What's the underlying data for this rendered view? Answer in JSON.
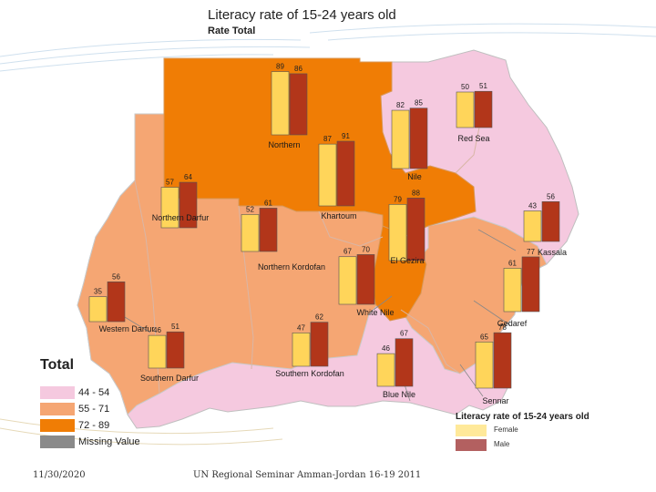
{
  "title": "Literacy rate of 15-24 years old",
  "subtitle": "Rate Total",
  "footer": {
    "date": "11/30/2020",
    "event": "UN Regional Seminar Amman-Jordan 16-19 2011"
  },
  "legend": {
    "title": "Total",
    "items": [
      {
        "label": "44 - 54",
        "color": "#f5c9df"
      },
      {
        "label": "55 - 71",
        "color": "#f5a673"
      },
      {
        "label": "72 - 89",
        "color": "#f07d05"
      },
      {
        "label": "Missing Value",
        "color": "#8a8a8a"
      }
    ]
  },
  "sex_legend": {
    "title": "Literacy rate of 15-24 years old",
    "items": [
      {
        "label": "Female",
        "color": "#ffe99a"
      },
      {
        "label": "Male",
        "color": "#b36060"
      }
    ]
  },
  "chart_data": {
    "type": "bar",
    "ylim": [
      0,
      100
    ],
    "series": [
      {
        "name": "Female",
        "color": "#ffd55a"
      },
      {
        "name": "Male",
        "color": "#b2361a"
      }
    ],
    "states": [
      {
        "name": "Northern",
        "female": 89,
        "male": 86
      },
      {
        "name": "Red Sea",
        "female": 50,
        "male": 51
      },
      {
        "name": "Nile",
        "female": 82,
        "male": 85
      },
      {
        "name": "Khartoum",
        "female": 87,
        "male": 91
      },
      {
        "name": "Northern Darfur",
        "female": 57,
        "male": 64
      },
      {
        "name": "Northern Kordofan",
        "female": 52,
        "male": 61
      },
      {
        "name": "El Gezira",
        "female": 79,
        "male": 88
      },
      {
        "name": "Kassala",
        "female": 43,
        "male": 56
      },
      {
        "name": "White Nile",
        "female": 67,
        "male": 70
      },
      {
        "name": "Western Darfur",
        "female": 35,
        "male": 56
      },
      {
        "name": "Gedaref",
        "female": 61,
        "male": 77
      },
      {
        "name": "Southern Darfur",
        "female": 46,
        "male": 51
      },
      {
        "name": "Southern Kordofan",
        "female": 47,
        "male": 62
      },
      {
        "name": "Blue Nile",
        "female": 46,
        "male": 67
      },
      {
        "name": "Sennar",
        "female": 65,
        "male": 78
      }
    ]
  }
}
